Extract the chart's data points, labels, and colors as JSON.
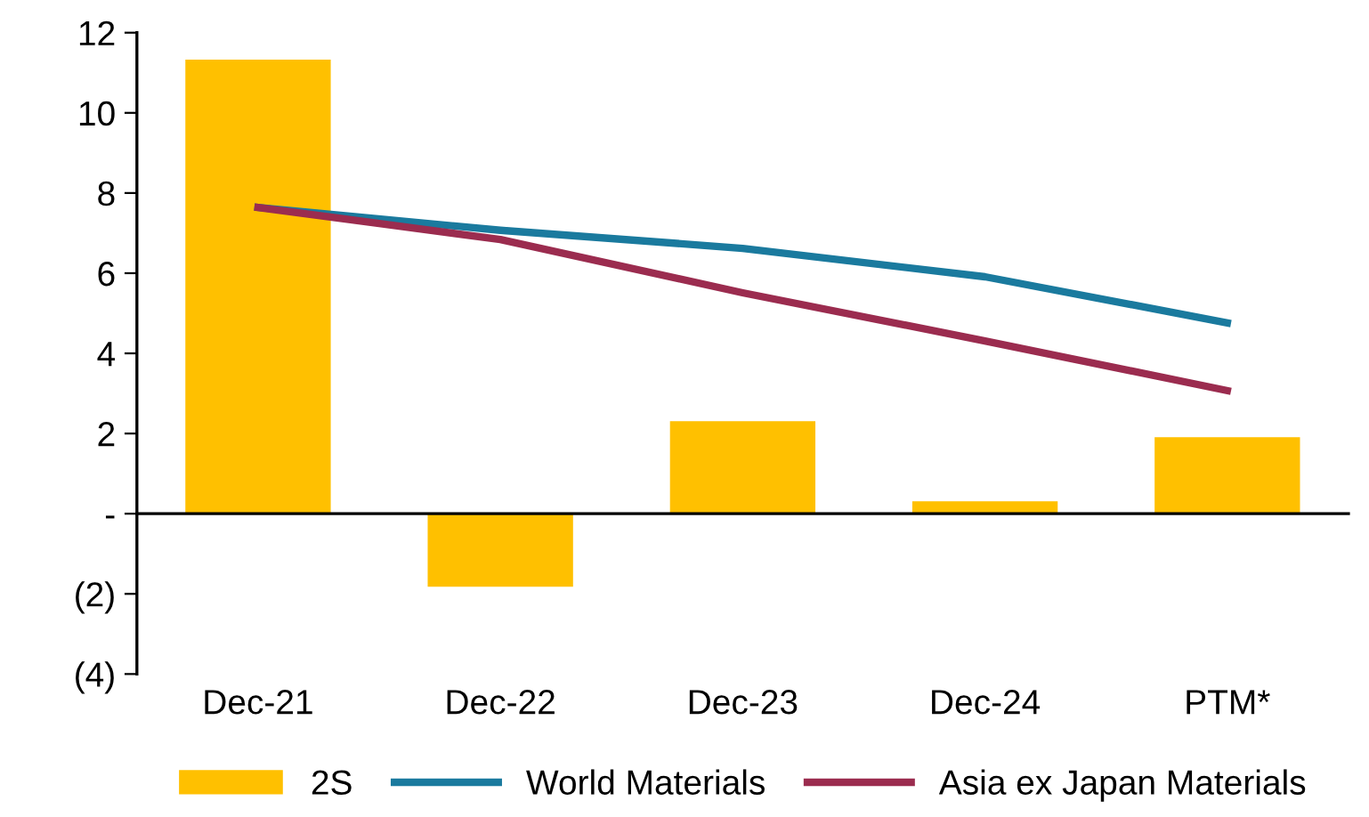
{
  "chart_data": {
    "type": "bar",
    "categories": [
      "Dec-21",
      "Dec-22",
      "Dec-23",
      "Dec-24",
      "PTM*"
    ],
    "series": [
      {
        "name": "2S",
        "color": "#ffc000",
        "values": [
          11.33,
          -1.82,
          2.31,
          0.31,
          1.91
        ]
      },
      {
        "name": "World Materials",
        "type": "line",
        "color": "#1a7a9e",
        "values": [
          7.64,
          7.07,
          6.62,
          5.91,
          4.76
        ]
      },
      {
        "name": "Asia ex Japan Materials",
        "type": "line",
        "color": "#9b2c4f",
        "values": [
          7.64,
          6.84,
          5.51,
          4.31,
          3.07
        ]
      }
    ],
    "ylim": [
      -4,
      12
    ],
    "yticks": [
      {
        "value": -4,
        "label": "(4)"
      },
      {
        "value": -2,
        "label": "(2)"
      },
      {
        "value": 0,
        "label": "-"
      },
      2,
      4,
      6,
      8,
      10,
      12
    ],
    "legend": "bottom",
    "marker": "none",
    "line_style": "solid"
  }
}
